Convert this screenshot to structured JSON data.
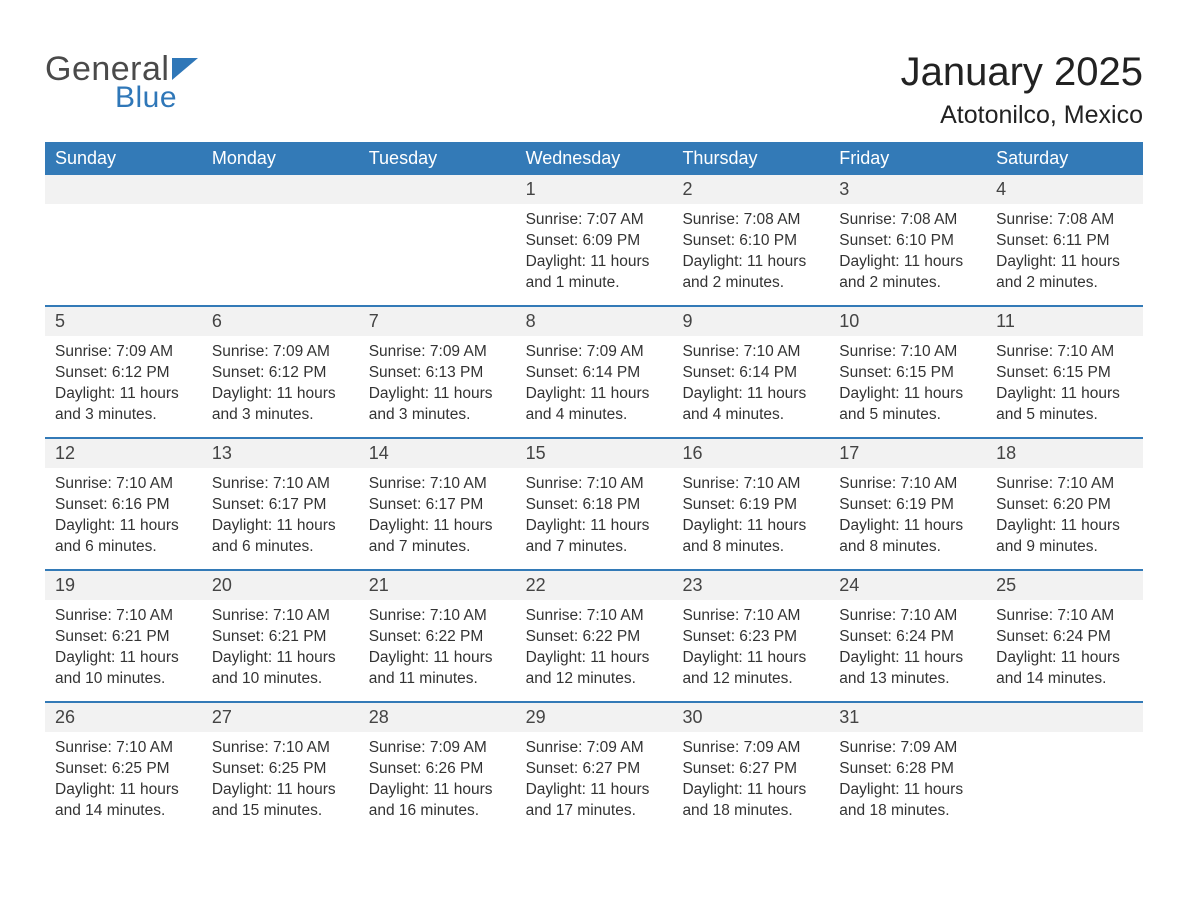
{
  "logo": {
    "text_general": "General",
    "text_blue": "Blue",
    "accent_color": "#2f77b8",
    "flag_color": "#2f77b8"
  },
  "header": {
    "month_title": "January 2025",
    "location": "Atotonilco, Mexico"
  },
  "colors": {
    "header_bg": "#337ab7",
    "header_text": "#ffffff",
    "daynum_bg": "#f2f2f2",
    "week_border": "#337ab7",
    "body_text": "#333333",
    "background": "#ffffff"
  },
  "fonts": {
    "title_size": 40,
    "location_size": 25,
    "weekday_size": 18,
    "daynum_size": 18,
    "body_size": 15.5
  },
  "weekdays": [
    "Sunday",
    "Monday",
    "Tuesday",
    "Wednesday",
    "Thursday",
    "Friday",
    "Saturday"
  ],
  "labels": {
    "sunrise": "Sunrise:",
    "sunset": "Sunset:",
    "daylight": "Daylight:"
  },
  "weeks": [
    [
      {
        "day": "",
        "sunrise": "",
        "sunset": "",
        "daylight": ""
      },
      {
        "day": "",
        "sunrise": "",
        "sunset": "",
        "daylight": ""
      },
      {
        "day": "",
        "sunrise": "",
        "sunset": "",
        "daylight": ""
      },
      {
        "day": "1",
        "sunrise": "7:07 AM",
        "sunset": "6:09 PM",
        "daylight": "11 hours and 1 minute."
      },
      {
        "day": "2",
        "sunrise": "7:08 AM",
        "sunset": "6:10 PM",
        "daylight": "11 hours and 2 minutes."
      },
      {
        "day": "3",
        "sunrise": "7:08 AM",
        "sunset": "6:10 PM",
        "daylight": "11 hours and 2 minutes."
      },
      {
        "day": "4",
        "sunrise": "7:08 AM",
        "sunset": "6:11 PM",
        "daylight": "11 hours and 2 minutes."
      }
    ],
    [
      {
        "day": "5",
        "sunrise": "7:09 AM",
        "sunset": "6:12 PM",
        "daylight": "11 hours and 3 minutes."
      },
      {
        "day": "6",
        "sunrise": "7:09 AM",
        "sunset": "6:12 PM",
        "daylight": "11 hours and 3 minutes."
      },
      {
        "day": "7",
        "sunrise": "7:09 AM",
        "sunset": "6:13 PM",
        "daylight": "11 hours and 3 minutes."
      },
      {
        "day": "8",
        "sunrise": "7:09 AM",
        "sunset": "6:14 PM",
        "daylight": "11 hours and 4 minutes."
      },
      {
        "day": "9",
        "sunrise": "7:10 AM",
        "sunset": "6:14 PM",
        "daylight": "11 hours and 4 minutes."
      },
      {
        "day": "10",
        "sunrise": "7:10 AM",
        "sunset": "6:15 PM",
        "daylight": "11 hours and 5 minutes."
      },
      {
        "day": "11",
        "sunrise": "7:10 AM",
        "sunset": "6:15 PM",
        "daylight": "11 hours and 5 minutes."
      }
    ],
    [
      {
        "day": "12",
        "sunrise": "7:10 AM",
        "sunset": "6:16 PM",
        "daylight": "11 hours and 6 minutes."
      },
      {
        "day": "13",
        "sunrise": "7:10 AM",
        "sunset": "6:17 PM",
        "daylight": "11 hours and 6 minutes."
      },
      {
        "day": "14",
        "sunrise": "7:10 AM",
        "sunset": "6:17 PM",
        "daylight": "11 hours and 7 minutes."
      },
      {
        "day": "15",
        "sunrise": "7:10 AM",
        "sunset": "6:18 PM",
        "daylight": "11 hours and 7 minutes."
      },
      {
        "day": "16",
        "sunrise": "7:10 AM",
        "sunset": "6:19 PM",
        "daylight": "11 hours and 8 minutes."
      },
      {
        "day": "17",
        "sunrise": "7:10 AM",
        "sunset": "6:19 PM",
        "daylight": "11 hours and 8 minutes."
      },
      {
        "day": "18",
        "sunrise": "7:10 AM",
        "sunset": "6:20 PM",
        "daylight": "11 hours and 9 minutes."
      }
    ],
    [
      {
        "day": "19",
        "sunrise": "7:10 AM",
        "sunset": "6:21 PM",
        "daylight": "11 hours and 10 minutes."
      },
      {
        "day": "20",
        "sunrise": "7:10 AM",
        "sunset": "6:21 PM",
        "daylight": "11 hours and 10 minutes."
      },
      {
        "day": "21",
        "sunrise": "7:10 AM",
        "sunset": "6:22 PM",
        "daylight": "11 hours and 11 minutes."
      },
      {
        "day": "22",
        "sunrise": "7:10 AM",
        "sunset": "6:22 PM",
        "daylight": "11 hours and 12 minutes."
      },
      {
        "day": "23",
        "sunrise": "7:10 AM",
        "sunset": "6:23 PM",
        "daylight": "11 hours and 12 minutes."
      },
      {
        "day": "24",
        "sunrise": "7:10 AM",
        "sunset": "6:24 PM",
        "daylight": "11 hours and 13 minutes."
      },
      {
        "day": "25",
        "sunrise": "7:10 AM",
        "sunset": "6:24 PM",
        "daylight": "11 hours and 14 minutes."
      }
    ],
    [
      {
        "day": "26",
        "sunrise": "7:10 AM",
        "sunset": "6:25 PM",
        "daylight": "11 hours and 14 minutes."
      },
      {
        "day": "27",
        "sunrise": "7:10 AM",
        "sunset": "6:25 PM",
        "daylight": "11 hours and 15 minutes."
      },
      {
        "day": "28",
        "sunrise": "7:09 AM",
        "sunset": "6:26 PM",
        "daylight": "11 hours and 16 minutes."
      },
      {
        "day": "29",
        "sunrise": "7:09 AM",
        "sunset": "6:27 PM",
        "daylight": "11 hours and 17 minutes."
      },
      {
        "day": "30",
        "sunrise": "7:09 AM",
        "sunset": "6:27 PM",
        "daylight": "11 hours and 18 minutes."
      },
      {
        "day": "31",
        "sunrise": "7:09 AM",
        "sunset": "6:28 PM",
        "daylight": "11 hours and 18 minutes."
      },
      {
        "day": "",
        "sunrise": "",
        "sunset": "",
        "daylight": ""
      }
    ]
  ]
}
